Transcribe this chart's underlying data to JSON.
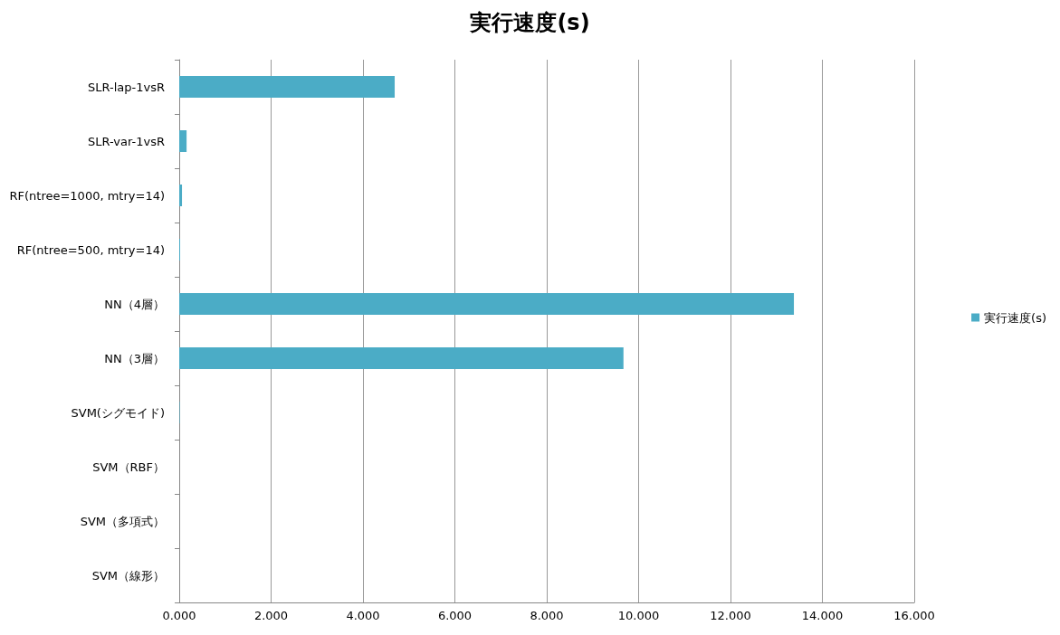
{
  "chart_data": {
    "type": "bar",
    "orientation": "horizontal",
    "title": "実行速度(s)",
    "categories": [
      "SLR-lap-1vsR",
      "SLR-var-1vsR",
      "RF(ntree=1000, mtry=14)",
      "RF(ntree=500, mtry=14)",
      "NN（4層）",
      "NN（3層）",
      "SVM(シグモイド)",
      "SVM（RBF）",
      "SVM（多項式）",
      "SVM（線形）"
    ],
    "series": [
      {
        "name": "実行速度(s)",
        "color": "#4bacc6",
        "values": [
          4.69,
          0.16,
          0.06,
          0.02,
          13.38,
          9.67,
          0.01,
          0,
          0,
          0
        ]
      }
    ],
    "xlim": [
      0,
      16
    ],
    "xticks": [
      {
        "value": 0,
        "label": "0.000"
      },
      {
        "value": 2,
        "label": "2.000"
      },
      {
        "value": 4,
        "label": "4.000"
      },
      {
        "value": 6,
        "label": "6.000"
      },
      {
        "value": 8,
        "label": "8.000"
      },
      {
        "value": 10,
        "label": "10.000"
      },
      {
        "value": 12,
        "label": "12.000"
      },
      {
        "value": 14,
        "label": "14.000"
      },
      {
        "value": 16,
        "label": "16.000"
      }
    ],
    "grid": "x",
    "legend": "right"
  }
}
